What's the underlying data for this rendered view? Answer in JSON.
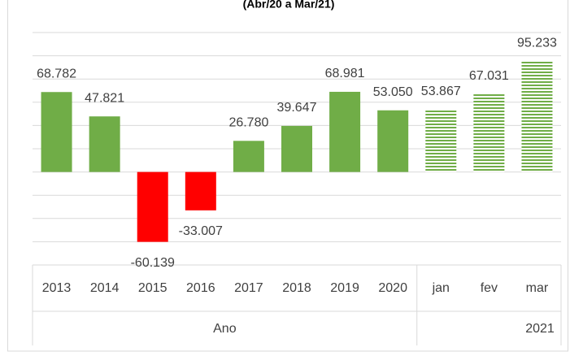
{
  "chart_data": {
    "type": "bar",
    "subtitle": "(Abr/20 a Mar/21)",
    "categories": [
      "2013",
      "2014",
      "2015",
      "2016",
      "2017",
      "2018",
      "2019",
      "2020",
      "jan",
      "fev",
      "mar"
    ],
    "values": [
      68782,
      47821,
      -60139,
      -33007,
      26780,
      39647,
      68981,
      53050,
      53867,
      67031,
      95233
    ],
    "value_labels": [
      "68.782",
      "47.821",
      "-60.139",
      "-33.007",
      "26.780",
      "39.647",
      "68.981",
      "53.050",
      "53.867",
      "67.031",
      "95.233"
    ],
    "groups": [
      {
        "label": "Ano",
        "count": 8
      },
      {
        "label": "2021",
        "count": 3
      }
    ],
    "color": "#70ad47",
    "negative_color": "#ff0000",
    "hatched": [
      false,
      false,
      false,
      false,
      false,
      false,
      false,
      false,
      true,
      true,
      true
    ],
    "ylim": [
      -80000,
      120000
    ],
    "yticks": [
      -80000,
      -60000,
      -40000,
      -20000,
      0,
      20000,
      40000,
      60000,
      80000,
      100000,
      120000
    ],
    "grid": true
  }
}
